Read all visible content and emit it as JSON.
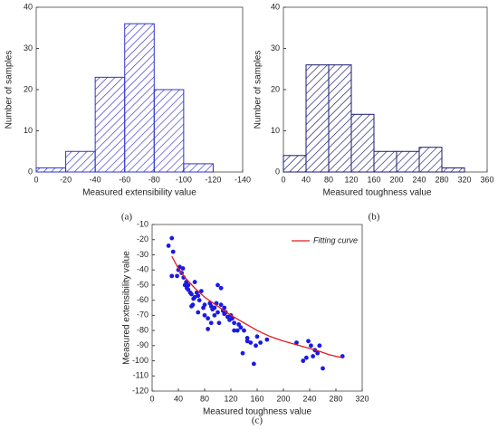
{
  "chart_data": [
    {
      "type": "histogram",
      "sublabel": "(a)",
      "x_label": "Measured extensibility value",
      "y_label": "Number of samples",
      "bins": [
        0,
        -20,
        -40,
        -60,
        -80,
        -100,
        -120
      ],
      "values": [
        1,
        5,
        23,
        36,
        20,
        2
      ],
      "color": "#3333cc",
      "xlim": [
        0,
        -140
      ],
      "xticks": [
        0,
        -20,
        -40,
        -60,
        -80,
        -100,
        -120,
        -140
      ],
      "ylim": [
        0,
        40
      ],
      "yticks": [
        0,
        10,
        20,
        30,
        40
      ]
    },
    {
      "type": "histogram",
      "sublabel": "(b)",
      "x_label": "Measured toughness value",
      "y_label": "Number of samples",
      "bins": [
        0,
        40,
        80,
        120,
        160,
        200,
        240,
        280,
        320
      ],
      "values": [
        4,
        26,
        26,
        14,
        5,
        5,
        6,
        1
      ],
      "color": "#1a1a70",
      "xlim": [
        0,
        360
      ],
      "xticks": [
        0,
        40,
        80,
        120,
        160,
        200,
        240,
        280,
        320,
        360
      ],
      "ylim": [
        0,
        40
      ],
      "yticks": [
        0,
        10,
        20,
        30,
        40
      ]
    },
    {
      "type": "scatter",
      "sublabel": "(c)",
      "x_label": "Measured toughness value",
      "y_label": "Measured extensibility value",
      "xlim": [
        0,
        320
      ],
      "xticks": [
        0,
        40,
        80,
        120,
        160,
        200,
        240,
        280,
        320
      ],
      "ylim": [
        -120,
        -10
      ],
      "yticks": [
        -120,
        -110,
        -100,
        -90,
        -80,
        -70,
        -60,
        -50,
        -40,
        -30,
        -20,
        -10
      ],
      "legend": "upper right",
      "series": [
        {
          "mode": "markers",
          "color": "#1a1ae6",
          "x": [
            25,
            30,
            32,
            30,
            38,
            40,
            42,
            45,
            48,
            50,
            52,
            55,
            55,
            58,
            60,
            60,
            62,
            65,
            65,
            68,
            70,
            72,
            75,
            78,
            80,
            80,
            85,
            88,
            90,
            92,
            95,
            95,
            98,
            100,
            100,
            102,
            105,
            105,
            108,
            110,
            112,
            115,
            118,
            120,
            122,
            125,
            130,
            132,
            135,
            138,
            140,
            145,
            150,
            155,
            158,
            160,
            165,
            175,
            220,
            230,
            235,
            238,
            242,
            245,
            248,
            252,
            255,
            260,
            290,
            85,
            90,
            70,
            63,
            47,
            53,
            110,
            125,
            145
          ],
          "values": [
            -24,
            -19,
            -28,
            -44,
            -44,
            -40,
            -38,
            -42,
            -45,
            -50,
            -48,
            -50,
            -53,
            -55,
            -56,
            -64,
            -63,
            -48,
            -58,
            -55,
            -57,
            -60,
            -54,
            -65,
            -63,
            -70,
            -79,
            -62,
            -64,
            -66,
            -65,
            -70,
            -62,
            -50,
            -68,
            -75,
            -52,
            -63,
            -67,
            -65,
            -68,
            -71,
            -73,
            -70,
            -72,
            -75,
            -80,
            -76,
            -78,
            -95,
            -80,
            -85,
            -88,
            -102,
            -90,
            -84,
            -88,
            -86,
            -88,
            -100,
            -98,
            -87,
            -90,
            -97,
            -93,
            -95,
            -90,
            -105,
            -97,
            -72,
            -75,
            -68,
            -59,
            -39,
            -52,
            -69,
            -80,
            -87
          ]
        },
        {
          "mode": "line",
          "name": "Fitting curve",
          "color": "#e31a1c",
          "x": [
            30,
            40,
            50,
            65,
            80,
            100,
            120,
            140,
            160,
            180,
            200,
            225,
            250,
            270,
            290
          ],
          "values": [
            -31,
            -39,
            -45,
            -52,
            -58,
            -64,
            -70,
            -75,
            -80,
            -84,
            -87,
            -90,
            -93,
            -96,
            -98
          ]
        }
      ]
    }
  ]
}
